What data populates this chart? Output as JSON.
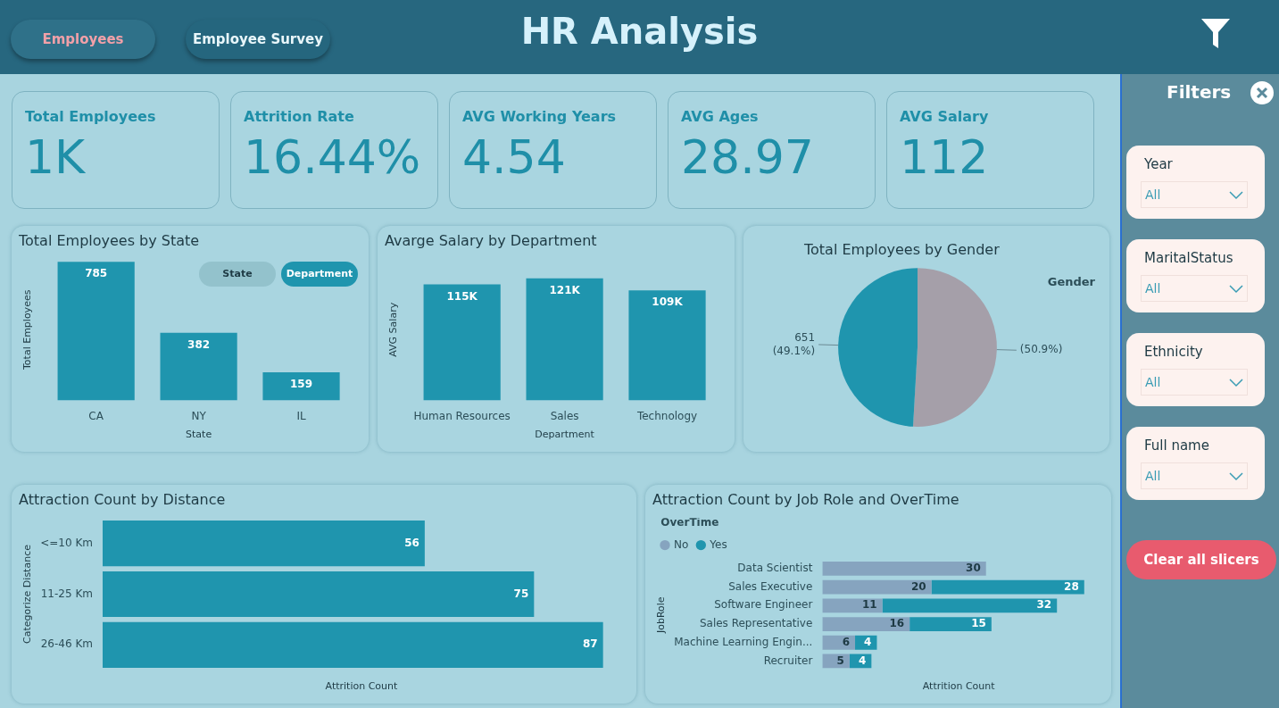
{
  "chart_data": [
    {
      "type": "other",
      "title": "HR Analysis",
      "annotations": [
        "Employees",
        "Employee Survey"
      ]
    },
    {
      "type": "other",
      "categories": [
        "Total Employees",
        "Attrition Rate",
        "AVG Working Years",
        "AVG Ages",
        "AVG Salary"
      ],
      "value_labels": [
        "1K",
        "16.44%",
        "4.54",
        "28.97",
        "112"
      ]
    },
    {
      "type": "bar",
      "title": "Total Employees by State",
      "xlabel": "State",
      "ylabel": "Total Employees",
      "categories": [
        "CA",
        "NY",
        "IL"
      ],
      "values": [
        785,
        382,
        159
      ],
      "color": "#1f95ae",
      "data_labels": true,
      "annotations": [
        "State",
        "Department"
      ]
    },
    {
      "type": "bar",
      "title": "Avarge Salary by Department",
      "xlabel": "Department",
      "ylabel": "AVG Salary",
      "categories": [
        "Human Resources",
        "Sales",
        "Technology"
      ],
      "values": [
        115,
        121,
        109
      ],
      "value_labels": [
        "115K",
        "121K",
        "109K"
      ],
      "color": "#1f95ae"
    },
    {
      "type": "pie",
      "title": "Total Employees by Gender",
      "legend_title": "Gender",
      "categories": [
        null,
        null
      ],
      "values": [
        50.9,
        49.1
      ],
      "value_labels": [
        "(50.9%)",
        "651\n(49.1%)"
      ],
      "colors": [
        "#a59fa9",
        "#1f95ae"
      ]
    },
    {
      "type": "bar",
      "orientation": "horizontal",
      "title": "Attraction Count by Distance",
      "xlabel": "Attrition Count",
      "ylabel": "Categorize Distance",
      "categories": [
        "<=10 Km",
        "11-25 Km",
        "26-46 Km"
      ],
      "values": [
        56,
        75,
        87
      ],
      "color": "#1f95ae",
      "data_labels": true
    },
    {
      "type": "bar",
      "orientation": "horizontal",
      "stacked": true,
      "title": "Attraction Count by Job Role and OverTime",
      "xlabel": "Attrition Count",
      "ylabel": "JobRole",
      "legend_title": "OverTime",
      "legend": "top left",
      "data_labels": true,
      "categories": [
        "Data Scientist",
        "Sales Executive",
        "Software Engineer",
        "Sales Representative",
        "Machine Learning Engin...",
        "Recruiter"
      ],
      "series": [
        {
          "name": "No",
          "color": "#86a4bf",
          "values": [
            30,
            20,
            11,
            16,
            6,
            5
          ]
        },
        {
          "name": "Yes",
          "color": "#1f95ae",
          "values": [
            null,
            28,
            32,
            15,
            4,
            4
          ]
        }
      ]
    },
    {
      "type": "other",
      "title": "Filters",
      "categories": [
        "Year",
        "MaritalStatus",
        "Ethnicity",
        "Full name"
      ],
      "value_labels": [
        "All",
        "All",
        "All",
        "All"
      ],
      "annotations": [
        "Clear all slicers"
      ]
    }
  ]
}
